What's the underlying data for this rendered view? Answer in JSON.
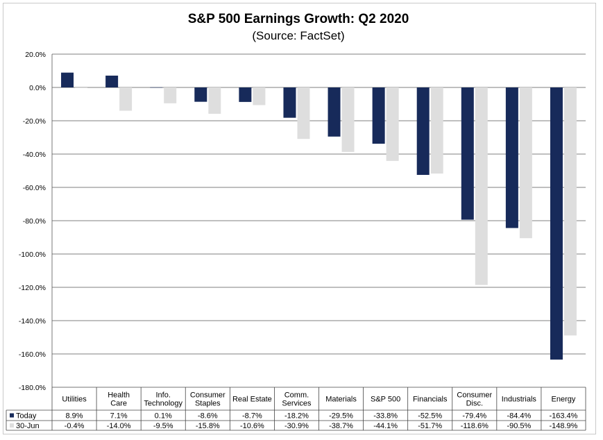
{
  "chart_data": {
    "type": "bar",
    "title": "S&P 500 Earnings Growth: Q2 2020",
    "subtitle": "(Source: FactSet)",
    "categories": [
      [
        "Utilities"
      ],
      [
        "Health",
        "Care"
      ],
      [
        "Info.",
        "Technology"
      ],
      [
        "Consumer",
        "Staples"
      ],
      [
        "Real Estate"
      ],
      [
        "Comm.",
        "Services"
      ],
      [
        "Materials"
      ],
      [
        "S&P 500"
      ],
      [
        "Financials"
      ],
      [
        "Consumer",
        "Disc."
      ],
      [
        "Industrials"
      ],
      [
        "Energy"
      ]
    ],
    "series": [
      {
        "name": "Today",
        "color": "#172a5a",
        "values": [
          8.9,
          7.1,
          0.1,
          -8.6,
          -8.7,
          -18.2,
          -29.5,
          -33.8,
          -52.5,
          -79.4,
          -84.4,
          -163.4
        ],
        "labels": [
          "8.9%",
          "7.1%",
          "0.1%",
          "-8.6%",
          "-8.7%",
          "-18.2%",
          "-29.5%",
          "-33.8%",
          "-52.5%",
          "-79.4%",
          "-84.4%",
          "-163.4%"
        ]
      },
      {
        "name": "30-Jun",
        "color": "#dedede",
        "values": [
          -0.4,
          -14.0,
          -9.5,
          -15.8,
          -10.6,
          -30.9,
          -38.7,
          -44.1,
          -51.7,
          -118.6,
          -90.5,
          -148.9
        ],
        "labels": [
          "-0.4%",
          "-14.0%",
          "-9.5%",
          "-15.8%",
          "-10.6%",
          "-30.9%",
          "-38.7%",
          "-44.1%",
          "-51.7%",
          "-118.6%",
          "-90.5%",
          "-148.9%"
        ]
      }
    ],
    "ylim": [
      -180,
      20
    ],
    "yticks": [
      20,
      0,
      -20,
      -40,
      -60,
      -80,
      -100,
      -120,
      -140,
      -160,
      -180
    ],
    "ytick_labels": [
      "20.0%",
      "0.0%",
      "-20.0%",
      "-40.0%",
      "-60.0%",
      "-80.0%",
      "-100.0%",
      "-120.0%",
      "-140.0%",
      "-160.0%",
      "-180.0%"
    ],
    "grid": true,
    "legend": "data-table"
  }
}
